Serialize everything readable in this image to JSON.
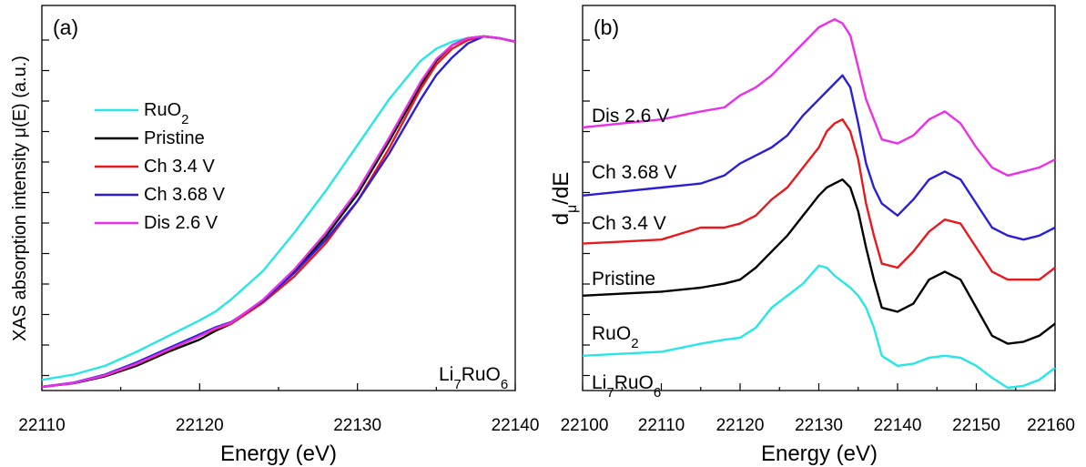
{
  "chart_data": [
    {
      "panel_tag": "(a)",
      "type": "line",
      "xlabel": "Energy (eV)",
      "ylabel": "XAS absorption intensity μ(E) (a.u.)",
      "xlim": [
        22110,
        22140
      ],
      "ylim": [
        0,
        1.0
      ],
      "x_ticks": [
        "22110",
        "22120",
        "22130",
        "22140"
      ],
      "y_tick_labels_shown": false,
      "grid": false,
      "legend_position": "upper-left",
      "annotation": {
        "base": "Li",
        "sub1": "7",
        "mid": "RuO",
        "sub2": "6"
      },
      "series": [
        {
          "name": "RuO",
          "name_sub": "2",
          "color": "#28e6e6",
          "x": [
            22110,
            22112,
            22114,
            22116,
            22118,
            22120,
            22121,
            22122,
            22124,
            22126,
            22128,
            22130,
            22132,
            22134,
            22135,
            22136,
            22137,
            22138,
            22139,
            22140
          ],
          "y": [
            0.02,
            0.035,
            0.06,
            0.1,
            0.145,
            0.19,
            0.215,
            0.25,
            0.33,
            0.44,
            0.56,
            0.69,
            0.82,
            0.93,
            0.965,
            0.985,
            0.995,
            1.0,
            0.995,
            0.985
          ]
        },
        {
          "name": "Pristine",
          "color": "#000000",
          "x": [
            22110,
            22112,
            22114,
            22116,
            22118,
            22120,
            22121,
            22122,
            22124,
            22126,
            22128,
            22130,
            22132,
            22134,
            22135,
            22136,
            22137,
            22138,
            22139,
            22140
          ],
          "y": [
            0.0,
            0.01,
            0.03,
            0.06,
            0.1,
            0.135,
            0.16,
            0.18,
            0.245,
            0.33,
            0.43,
            0.55,
            0.7,
            0.86,
            0.93,
            0.975,
            0.995,
            1.0,
            0.995,
            0.985
          ]
        },
        {
          "name": "Ch 3.4 V",
          "color": "#e8191e",
          "x": [
            22110,
            22112,
            22114,
            22116,
            22118,
            22120,
            22121,
            22122,
            22124,
            22126,
            22128,
            22130,
            22132,
            22134,
            22135,
            22136,
            22137,
            22138,
            22139,
            22140
          ],
          "y": [
            0.0,
            0.012,
            0.032,
            0.065,
            0.105,
            0.145,
            0.165,
            0.18,
            0.24,
            0.315,
            0.41,
            0.53,
            0.68,
            0.85,
            0.92,
            0.965,
            0.99,
            1.0,
            0.995,
            0.985
          ]
        },
        {
          "name": "Ch 3.68 V",
          "color": "#2a1fd6",
          "x": [
            22110,
            22112,
            22114,
            22116,
            22118,
            22120,
            22121,
            22122,
            22124,
            22126,
            22128,
            22130,
            22132,
            22134,
            22135,
            22136,
            22137,
            22138,
            22139,
            22140
          ],
          "y": [
            0.0,
            0.012,
            0.035,
            0.07,
            0.11,
            0.15,
            0.17,
            0.185,
            0.245,
            0.325,
            0.42,
            0.53,
            0.665,
            0.82,
            0.89,
            0.94,
            0.98,
            1.0,
            0.995,
            0.985
          ]
        },
        {
          "name": "Dis 2.6 V",
          "color": "#e830e8",
          "x": [
            22110,
            22112,
            22114,
            22116,
            22118,
            22120,
            22121,
            22122,
            22124,
            22126,
            22128,
            22130,
            22132,
            22134,
            22135,
            22136,
            22137,
            22138,
            22139,
            22140
          ],
          "y": [
            0.0,
            0.011,
            0.033,
            0.066,
            0.106,
            0.145,
            0.167,
            0.183,
            0.248,
            0.335,
            0.44,
            0.56,
            0.71,
            0.87,
            0.935,
            0.975,
            0.995,
            1.0,
            0.995,
            0.985
          ]
        }
      ]
    },
    {
      "panel_tag": "(b)",
      "type": "line",
      "xlabel": "Energy (eV)",
      "ylabel": "dμ/dE",
      "ylabel_parts": {
        "base": "d",
        "sub": "μ",
        "rest": "/dE"
      },
      "xlim": [
        22100,
        22160
      ],
      "ylim": [
        0,
        1.0
      ],
      "x_ticks": [
        "22100",
        "22110",
        "22120",
        "22130",
        "22140",
        "22150",
        "22160"
      ],
      "y_tick_labels_shown": false,
      "grid": false,
      "legend": "none",
      "series": [
        {
          "name": "Li7RuO6",
          "label": {
            "base": "Li",
            "sub1": "7",
            "mid": "RuO",
            "sub2": "6"
          },
          "color": "#28e6e6",
          "x": [
            22100,
            22105,
            22110,
            22115,
            22118,
            22120,
            22122,
            22124,
            22126,
            22128,
            22130,
            22131,
            22132,
            22133,
            22134,
            22135,
            22136,
            22137,
            22138,
            22140,
            22142,
            22144,
            22146,
            22148,
            22150,
            22152,
            22154,
            22156,
            22158,
            22160
          ],
          "y": [
            0.08,
            0.085,
            0.09,
            0.11,
            0.12,
            0.125,
            0.15,
            0.2,
            0.23,
            0.26,
            0.305,
            0.3,
            0.28,
            0.265,
            0.25,
            0.23,
            0.2,
            0.15,
            0.08,
            0.055,
            0.06,
            0.075,
            0.08,
            0.075,
            0.055,
            0.025,
            0.0,
            0.005,
            0.02,
            0.05
          ]
        },
        {
          "name": "RuO2",
          "label": {
            "base": "RuO",
            "sub1": "2"
          },
          "color": "#000000",
          "x": [
            22100,
            22105,
            22110,
            22115,
            22118,
            22120,
            22122,
            22124,
            22126,
            22128,
            22130,
            22131,
            22132,
            22133,
            22134,
            22135,
            22136,
            22137,
            22138,
            22140,
            22142,
            22144,
            22146,
            22148,
            22150,
            22152,
            22154,
            22156,
            22158,
            22160
          ],
          "y": [
            0.23,
            0.235,
            0.24,
            0.25,
            0.26,
            0.27,
            0.3,
            0.34,
            0.38,
            0.43,
            0.48,
            0.5,
            0.51,
            0.52,
            0.5,
            0.44,
            0.35,
            0.27,
            0.2,
            0.19,
            0.21,
            0.27,
            0.29,
            0.27,
            0.2,
            0.13,
            0.11,
            0.115,
            0.13,
            0.16
          ]
        },
        {
          "name": "Pristine",
          "color": "#e8191e",
          "x": [
            22100,
            22105,
            22110,
            22115,
            22118,
            22120,
            22122,
            22124,
            22126,
            22128,
            22130,
            22131,
            22132,
            22133,
            22134,
            22135,
            22136,
            22137,
            22138,
            22140,
            22142,
            22144,
            22146,
            22148,
            22150,
            22152,
            22154,
            22156,
            22158,
            22160
          ],
          "y": [
            0.36,
            0.365,
            0.37,
            0.4,
            0.4,
            0.41,
            0.43,
            0.47,
            0.5,
            0.55,
            0.6,
            0.64,
            0.66,
            0.67,
            0.64,
            0.57,
            0.46,
            0.38,
            0.31,
            0.3,
            0.34,
            0.39,
            0.42,
            0.41,
            0.35,
            0.29,
            0.27,
            0.27,
            0.27,
            0.3
          ]
        },
        {
          "name": "Ch 3.4 V",
          "color": "#2a1fd6",
          "x": [
            22100,
            22105,
            22110,
            22115,
            22118,
            22120,
            22122,
            22124,
            22126,
            22128,
            22130,
            22131,
            22132,
            22133,
            22134,
            22135,
            22136,
            22137,
            22138,
            22140,
            22142,
            22144,
            22146,
            22148,
            22150,
            22152,
            22154,
            22156,
            22158,
            22160
          ],
          "y": [
            0.48,
            0.49,
            0.5,
            0.51,
            0.53,
            0.56,
            0.58,
            0.6,
            0.63,
            0.68,
            0.72,
            0.74,
            0.76,
            0.78,
            0.75,
            0.66,
            0.56,
            0.5,
            0.46,
            0.43,
            0.47,
            0.52,
            0.54,
            0.52,
            0.46,
            0.4,
            0.38,
            0.37,
            0.38,
            0.4
          ]
        },
        {
          "name": "Ch 3.68 V",
          "color": "#e830e8",
          "x": [
            22100,
            22105,
            22110,
            22115,
            22118,
            22120,
            22122,
            22124,
            22126,
            22128,
            22130,
            22131,
            22132,
            22133,
            22134,
            22135,
            22136,
            22137,
            22138,
            22140,
            22142,
            22144,
            22146,
            22148,
            22150,
            22152,
            22154,
            22156,
            22158,
            22160
          ],
          "y": [
            0.65,
            0.66,
            0.67,
            0.69,
            0.7,
            0.73,
            0.75,
            0.78,
            0.82,
            0.86,
            0.9,
            0.91,
            0.92,
            0.91,
            0.88,
            0.8,
            0.72,
            0.67,
            0.62,
            0.61,
            0.63,
            0.67,
            0.69,
            0.66,
            0.6,
            0.55,
            0.53,
            0.54,
            0.55,
            0.57
          ]
        },
        {
          "name": "Dis 2.6 V",
          "color": "#e830e8",
          "x": [],
          "y": []
        }
      ],
      "labels_order_top_to_bottom": [
        "Dis 2.6 V",
        "Ch 3.68 V",
        "Ch 3.4 V",
        "Pristine",
        "RuO2",
        "Li7RuO6"
      ]
    }
  ],
  "legend_a": [
    {
      "text": "RuO",
      "sub": "2",
      "color": "#28e6e6"
    },
    {
      "text": "Pristine",
      "sub": "",
      "color": "#000000"
    },
    {
      "text": "Ch 3.4 V",
      "sub": "",
      "color": "#e8191e"
    },
    {
      "text": "Ch 3.68 V",
      "sub": "",
      "color": "#2a1fd6"
    },
    {
      "text": "Dis 2.6 V",
      "sub": "",
      "color": "#e830e8"
    }
  ]
}
